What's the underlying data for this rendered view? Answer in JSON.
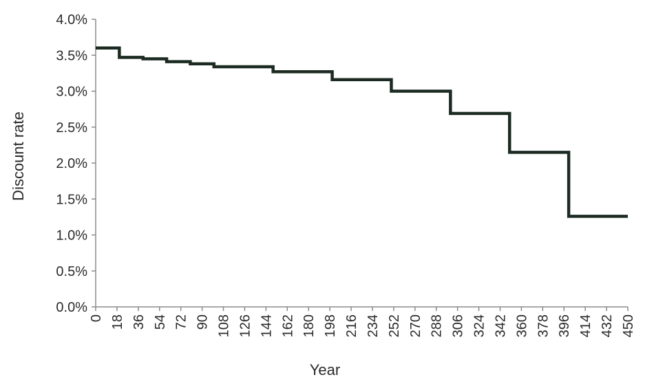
{
  "chart_data": {
    "type": "line",
    "step": true,
    "title": "",
    "xlabel": "Year",
    "ylabel": "Discount rate",
    "xlim": [
      0,
      450
    ],
    "ylim": [
      0,
      4.0
    ],
    "x_ticks": [
      0,
      18,
      36,
      54,
      72,
      90,
      108,
      126,
      144,
      162,
      180,
      198,
      216,
      234,
      252,
      270,
      288,
      306,
      324,
      342,
      360,
      378,
      396,
      414,
      432,
      450
    ],
    "x_tick_labels": [
      "0",
      "18",
      "36",
      "54",
      "72",
      "90",
      "108",
      "126",
      "144",
      "162",
      "180",
      "198",
      "216",
      "234",
      "252",
      "270",
      "288",
      "306",
      "324",
      "342",
      "360",
      "378",
      "396",
      "414",
      "432",
      "450"
    ],
    "y_ticks": [
      0,
      0.5,
      1.0,
      1.5,
      2.0,
      2.5,
      3.0,
      3.5,
      4.0
    ],
    "y_tick_labels": [
      "0.0%",
      "0.5%",
      "1.0%",
      "1.5%",
      "2.0%",
      "2.5%",
      "3.0%",
      "3.5%",
      "4.0%"
    ],
    "grid": false,
    "legend": "none",
    "line_color": "#1c2b22",
    "series": [
      {
        "x": [
          0,
          20,
          40,
          60,
          80,
          100,
          150,
          200,
          250,
          300,
          350,
          400,
          450
        ],
        "y": [
          3.6,
          3.47,
          3.45,
          3.41,
          3.38,
          3.34,
          3.27,
          3.16,
          3.0,
          2.69,
          2.15,
          1.26,
          1.26
        ]
      }
    ]
  }
}
